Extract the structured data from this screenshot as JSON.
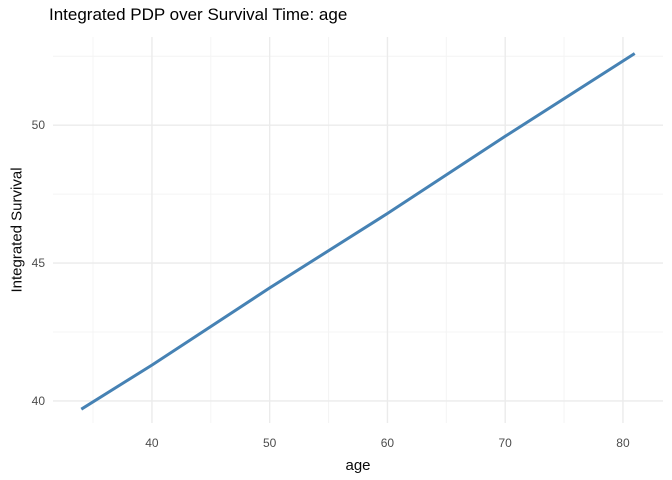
{
  "chart_data": {
    "type": "line",
    "title": "Integrated PDP over Survival Time: age",
    "xlabel": "age",
    "ylabel": "Integrated Survival",
    "x": [
      34,
      40,
      50,
      60,
      70,
      81
    ],
    "y": [
      39.7,
      41.3,
      44.1,
      46.8,
      49.6,
      52.6
    ],
    "xlim": [
      31.6,
      83.4
    ],
    "ylim": [
      39.2,
      53.2
    ],
    "x_ticks": [
      40,
      50,
      60,
      70,
      80
    ],
    "y_ticks": [
      40,
      45,
      50
    ],
    "x_minor_ticks": [
      35,
      45,
      55,
      65,
      75
    ],
    "y_minor_ticks": [
      42.5,
      47.5,
      52.5
    ],
    "grid": true,
    "legend_position": "none",
    "line_color": "#4682B4",
    "line_width": 3,
    "colors": {
      "grid_major": "#EBEBEB",
      "grid_minor": "#F4F4F4",
      "tick_label": "#4D4D4D",
      "axis_title": "#0A0A0A",
      "title": "#000000",
      "background": "#FFFFFF"
    }
  }
}
